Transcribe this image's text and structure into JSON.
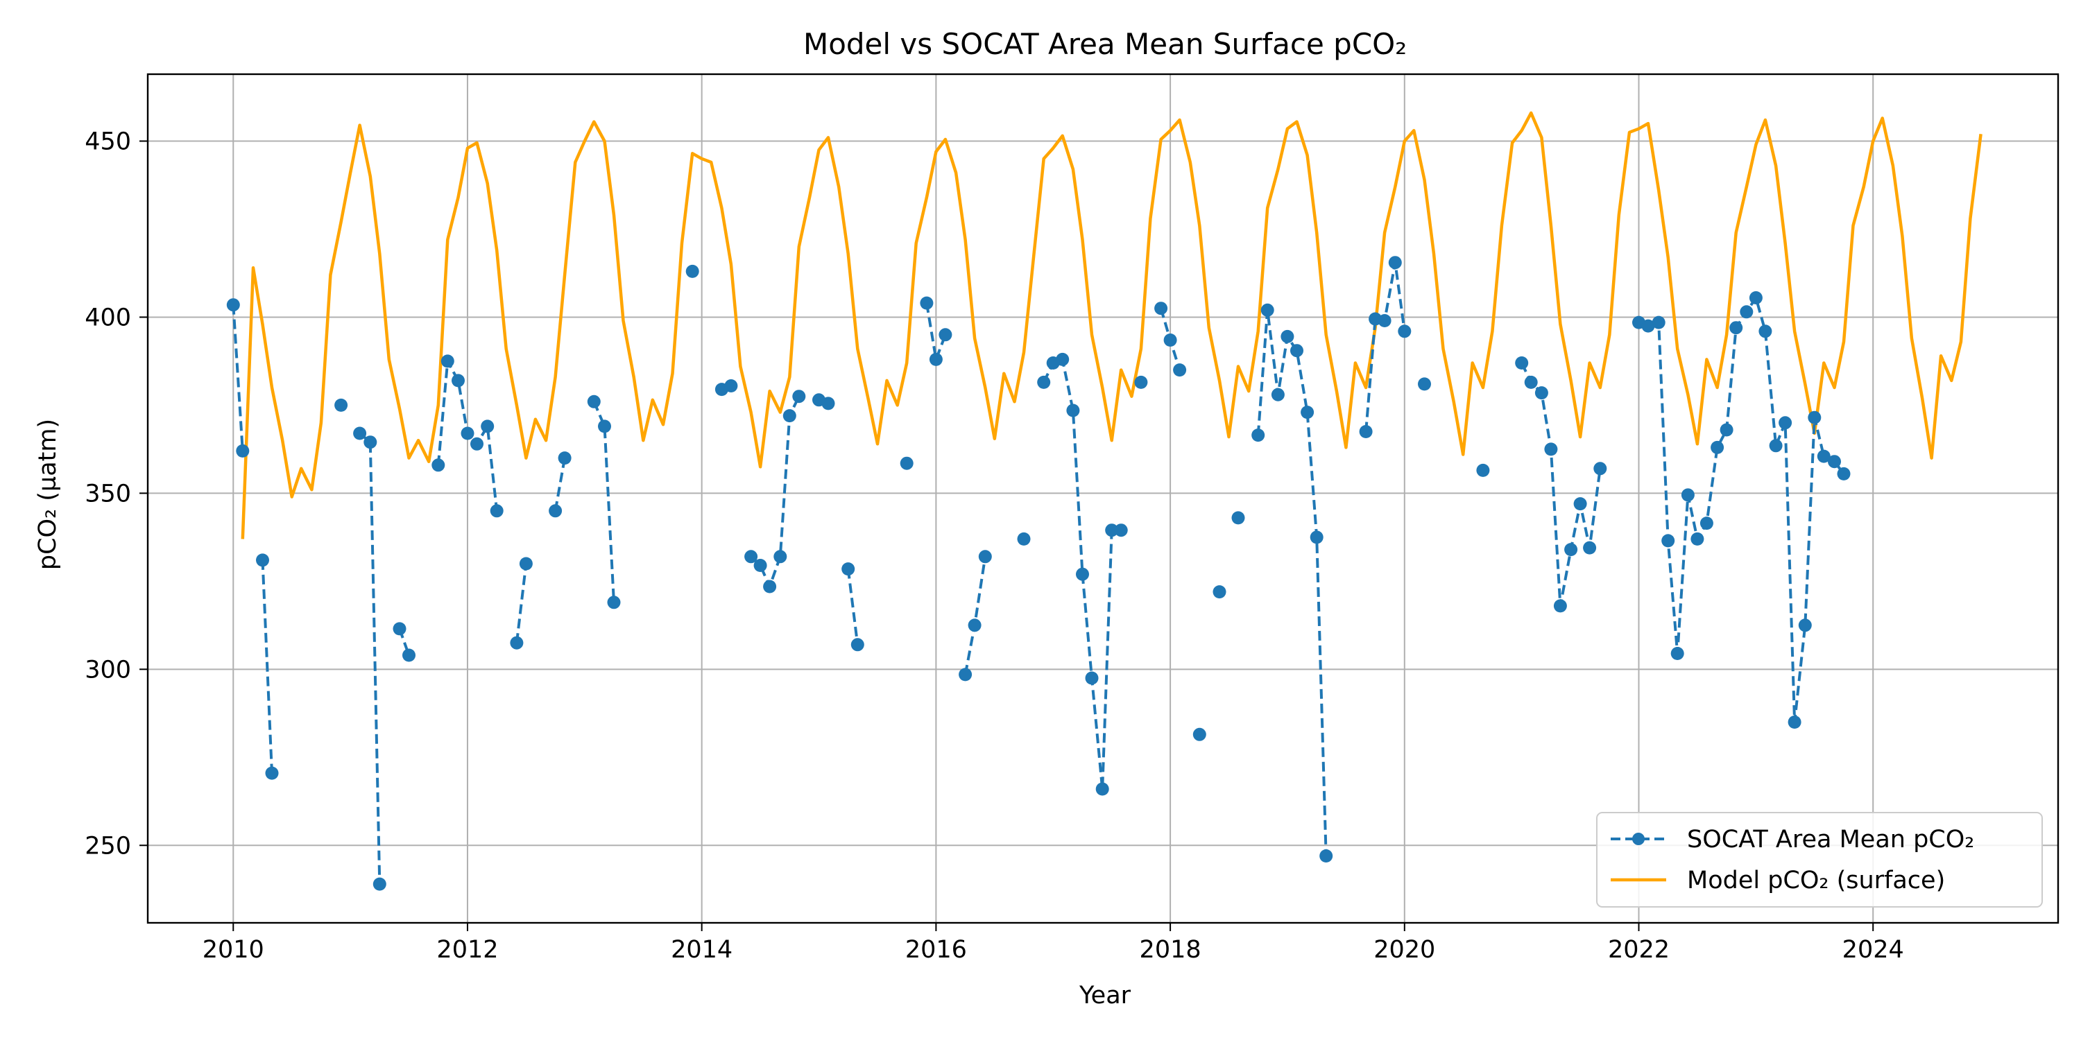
{
  "chart_data": {
    "type": "line",
    "title": "Model vs SOCAT Area Mean Surface pCO₂",
    "xlabel": "Year",
    "ylabel": "pCO₂ (µatm)",
    "xlim": [
      2009.27,
      2025.58
    ],
    "ylim": [
      228,
      469
    ],
    "xticks": [
      2010,
      2012,
      2014,
      2016,
      2018,
      2020,
      2022,
      2024
    ],
    "yticks": [
      250,
      300,
      350,
      400,
      450
    ],
    "grid": true,
    "legend_position": "lower-right",
    "colors": {
      "socat": "#1f77b4",
      "model": "#ffa500",
      "grid": "#b0b0b0"
    },
    "series": [
      {
        "name": "SOCAT Area Mean pCO₂",
        "style": "dashed-markers",
        "points": [
          [
            2010.0,
            403.5
          ],
          [
            2010.08,
            362
          ],
          null,
          [
            2010.25,
            331
          ],
          [
            2010.33,
            270.5
          ],
          null,
          [
            2010.92,
            375
          ],
          null,
          [
            2011.08,
            367
          ],
          [
            2011.17,
            364.5
          ],
          [
            2011.25,
            239
          ],
          null,
          [
            2011.42,
            311.5
          ],
          [
            2011.5,
            304
          ],
          null,
          [
            2011.75,
            358
          ],
          [
            2011.83,
            387.5
          ],
          [
            2011.92,
            382
          ],
          [
            2012.0,
            367
          ],
          [
            2012.08,
            364
          ],
          [
            2012.17,
            369
          ],
          [
            2012.25,
            345
          ],
          null,
          [
            2012.42,
            307.5
          ],
          [
            2012.5,
            330
          ],
          null,
          [
            2012.75,
            345
          ],
          [
            2012.83,
            360
          ],
          null,
          [
            2013.08,
            376
          ],
          [
            2013.17,
            369
          ],
          [
            2013.25,
            319
          ],
          null,
          [
            2013.92,
            413
          ],
          null,
          [
            2014.17,
            379.5
          ],
          [
            2014.25,
            380.5
          ],
          null,
          [
            2014.42,
            332
          ],
          [
            2014.5,
            329.5
          ],
          [
            2014.58,
            323.5
          ],
          [
            2014.67,
            332
          ],
          [
            2014.75,
            372
          ],
          [
            2014.83,
            377.5
          ],
          null,
          [
            2015.0,
            376.5
          ],
          [
            2015.08,
            375.5
          ],
          null,
          [
            2015.25,
            328.5
          ],
          [
            2015.33,
            307
          ],
          null,
          [
            2015.75,
            358.5
          ],
          null,
          [
            2015.92,
            404
          ],
          [
            2016.0,
            388
          ],
          [
            2016.08,
            395
          ],
          null,
          [
            2016.25,
            298.5
          ],
          [
            2016.33,
            312.5
          ],
          [
            2016.42,
            332
          ],
          null,
          [
            2016.75,
            337
          ],
          null,
          [
            2016.92,
            381.5
          ],
          [
            2017.0,
            387
          ],
          [
            2017.08,
            388
          ],
          [
            2017.17,
            373.5
          ],
          [
            2017.25,
            327
          ],
          [
            2017.33,
            297.5
          ],
          [
            2017.42,
            266
          ],
          [
            2017.5,
            339.5
          ],
          [
            2017.58,
            339.5
          ],
          null,
          [
            2017.75,
            381.5
          ],
          null,
          [
            2017.92,
            402.5
          ],
          [
            2018.0,
            393.5
          ],
          [
            2018.08,
            385
          ],
          null,
          [
            2018.25,
            281.5
          ],
          null,
          [
            2018.42,
            322
          ],
          null,
          [
            2018.58,
            343
          ],
          null,
          [
            2018.75,
            366.5
          ],
          [
            2018.83,
            402
          ],
          [
            2018.92,
            378
          ],
          [
            2019.0,
            394.5
          ],
          [
            2019.08,
            390.5
          ],
          [
            2019.17,
            373
          ],
          [
            2019.25,
            337.5
          ],
          [
            2019.33,
            247
          ],
          null,
          [
            2019.67,
            367.5
          ],
          [
            2019.75,
            399.5
          ],
          [
            2019.83,
            399
          ],
          [
            2019.92,
            415.5
          ],
          [
            2020.0,
            396
          ],
          null,
          [
            2020.17,
            381
          ],
          null,
          [
            2020.67,
            356.5
          ],
          null,
          [
            2021.0,
            387
          ],
          [
            2021.08,
            381.5
          ],
          [
            2021.17,
            378.5
          ],
          [
            2021.25,
            362.5
          ],
          [
            2021.33,
            318
          ],
          [
            2021.42,
            334
          ],
          [
            2021.5,
            347
          ],
          [
            2021.58,
            334.5
          ],
          [
            2021.67,
            357
          ],
          null,
          [
            2022.0,
            398.5
          ],
          [
            2022.08,
            397.5
          ],
          [
            2022.17,
            398.5
          ],
          [
            2022.25,
            336.5
          ],
          [
            2022.33,
            304.5
          ],
          [
            2022.42,
            349.5
          ],
          [
            2022.5,
            337
          ],
          [
            2022.58,
            341.5
          ],
          [
            2022.67,
            363
          ],
          [
            2022.75,
            368
          ],
          [
            2022.83,
            397
          ],
          [
            2022.92,
            401.5
          ],
          [
            2023.0,
            405.5
          ],
          [
            2023.08,
            396
          ],
          [
            2023.17,
            363.5
          ],
          [
            2023.25,
            370
          ],
          [
            2023.33,
            285
          ],
          [
            2023.42,
            312.5
          ],
          [
            2023.5,
            371.5
          ],
          [
            2023.58,
            360.5
          ],
          [
            2023.67,
            359
          ],
          [
            2023.75,
            355.5
          ]
        ]
      },
      {
        "name": "Model pCO₂ (surface)",
        "style": "solid",
        "points": [
          [
            2010.08,
            337
          ],
          [
            2010.17,
            414
          ],
          [
            2010.25,
            398
          ],
          [
            2010.33,
            380
          ],
          [
            2010.42,
            365
          ],
          [
            2010.5,
            349
          ],
          [
            2010.58,
            357
          ],
          [
            2010.67,
            351
          ],
          [
            2010.75,
            370
          ],
          [
            2010.83,
            412
          ],
          [
            2010.92,
            427
          ],
          [
            2011.0,
            441
          ],
          [
            2011.08,
            454.5
          ],
          [
            2011.17,
            440
          ],
          [
            2011.25,
            418
          ],
          [
            2011.33,
            388
          ],
          [
            2011.42,
            374
          ],
          [
            2011.5,
            360
          ],
          [
            2011.58,
            365
          ],
          [
            2011.67,
            359
          ],
          [
            2011.75,
            375
          ],
          [
            2011.83,
            422
          ],
          [
            2011.92,
            434
          ],
          [
            2012.0,
            448
          ],
          [
            2012.08,
            449.5
          ],
          [
            2012.17,
            438
          ],
          [
            2012.25,
            419
          ],
          [
            2012.33,
            391
          ],
          [
            2012.42,
            375
          ],
          [
            2012.5,
            360
          ],
          [
            2012.58,
            371
          ],
          [
            2012.67,
            365
          ],
          [
            2012.75,
            383
          ],
          [
            2012.83,
            412
          ],
          [
            2012.92,
            444
          ],
          [
            2013.0,
            450
          ],
          [
            2013.08,
            455.5
          ],
          [
            2013.17,
            450
          ],
          [
            2013.25,
            429
          ],
          [
            2013.33,
            399
          ],
          [
            2013.42,
            383
          ],
          [
            2013.5,
            365
          ],
          [
            2013.58,
            376.5
          ],
          [
            2013.67,
            369.5
          ],
          [
            2013.75,
            384
          ],
          [
            2013.83,
            421
          ],
          [
            2013.92,
            446.5
          ],
          [
            2014.0,
            445
          ],
          [
            2014.08,
            444
          ],
          [
            2014.17,
            431
          ],
          [
            2014.25,
            415
          ],
          [
            2014.33,
            386
          ],
          [
            2014.42,
            373
          ],
          [
            2014.5,
            357.5
          ],
          [
            2014.58,
            379
          ],
          [
            2014.67,
            373
          ],
          [
            2014.75,
            383
          ],
          [
            2014.83,
            420
          ],
          [
            2014.92,
            434
          ],
          [
            2015.0,
            447.5
          ],
          [
            2015.08,
            451
          ],
          [
            2015.17,
            437
          ],
          [
            2015.25,
            418
          ],
          [
            2015.33,
            391
          ],
          [
            2015.42,
            377
          ],
          [
            2015.5,
            364
          ],
          [
            2015.58,
            382
          ],
          [
            2015.67,
            375
          ],
          [
            2015.75,
            387
          ],
          [
            2015.83,
            421
          ],
          [
            2015.92,
            434
          ],
          [
            2016.0,
            447
          ],
          [
            2016.08,
            450.5
          ],
          [
            2016.17,
            441
          ],
          [
            2016.25,
            422
          ],
          [
            2016.33,
            394
          ],
          [
            2016.42,
            380
          ],
          [
            2016.5,
            365.5
          ],
          [
            2016.58,
            384
          ],
          [
            2016.67,
            376
          ],
          [
            2016.75,
            390
          ],
          [
            2016.83,
            416
          ],
          [
            2016.92,
            445
          ],
          [
            2017.0,
            448
          ],
          [
            2017.08,
            451.5
          ],
          [
            2017.17,
            442
          ],
          [
            2017.25,
            422
          ],
          [
            2017.33,
            395
          ],
          [
            2017.42,
            380
          ],
          [
            2017.5,
            365
          ],
          [
            2017.58,
            385
          ],
          [
            2017.67,
            377.5
          ],
          [
            2017.75,
            391
          ],
          [
            2017.83,
            428
          ],
          [
            2017.92,
            450.5
          ],
          [
            2018.0,
            453
          ],
          [
            2018.08,
            456
          ],
          [
            2018.17,
            444
          ],
          [
            2018.25,
            426
          ],
          [
            2018.33,
            397
          ],
          [
            2018.42,
            382
          ],
          [
            2018.5,
            366
          ],
          [
            2018.58,
            386
          ],
          [
            2018.67,
            379
          ],
          [
            2018.75,
            396
          ],
          [
            2018.83,
            431
          ],
          [
            2018.92,
            442
          ],
          [
            2019.0,
            453.5
          ],
          [
            2019.08,
            455.5
          ],
          [
            2019.17,
            446
          ],
          [
            2019.25,
            424
          ],
          [
            2019.33,
            395
          ],
          [
            2019.42,
            379
          ],
          [
            2019.5,
            363
          ],
          [
            2019.58,
            387
          ],
          [
            2019.67,
            380
          ],
          [
            2019.75,
            397
          ],
          [
            2019.83,
            424
          ],
          [
            2019.92,
            437
          ],
          [
            2020.0,
            450
          ],
          [
            2020.08,
            453
          ],
          [
            2020.17,
            439
          ],
          [
            2020.25,
            418
          ],
          [
            2020.33,
            391
          ],
          [
            2020.42,
            376
          ],
          [
            2020.5,
            361
          ],
          [
            2020.58,
            387
          ],
          [
            2020.67,
            380
          ],
          [
            2020.75,
            396
          ],
          [
            2020.83,
            426
          ],
          [
            2020.92,
            449.5
          ],
          [
            2021.0,
            453
          ],
          [
            2021.08,
            458
          ],
          [
            2021.17,
            451
          ],
          [
            2021.25,
            426
          ],
          [
            2021.33,
            398
          ],
          [
            2021.42,
            382
          ],
          [
            2021.5,
            366
          ],
          [
            2021.58,
            387
          ],
          [
            2021.67,
            380
          ],
          [
            2021.75,
            395
          ],
          [
            2021.83,
            429
          ],
          [
            2021.92,
            452.5
          ],
          [
            2022.0,
            453.5
          ],
          [
            2022.08,
            455
          ],
          [
            2022.17,
            436
          ],
          [
            2022.25,
            417
          ],
          [
            2022.33,
            391
          ],
          [
            2022.42,
            378
          ],
          [
            2022.5,
            364
          ],
          [
            2022.58,
            388
          ],
          [
            2022.67,
            380
          ],
          [
            2022.75,
            395
          ],
          [
            2022.83,
            424
          ],
          [
            2022.92,
            437
          ],
          [
            2023.0,
            449
          ],
          [
            2023.08,
            456
          ],
          [
            2023.17,
            443
          ],
          [
            2023.25,
            421
          ],
          [
            2023.33,
            396
          ],
          [
            2023.42,
            381
          ],
          [
            2023.5,
            367
          ],
          [
            2023.58,
            387
          ],
          [
            2023.67,
            380
          ],
          [
            2023.75,
            393
          ],
          [
            2023.83,
            426
          ],
          [
            2023.92,
            437
          ],
          [
            2024.0,
            450
          ],
          [
            2024.08,
            456.5
          ],
          [
            2024.17,
            443
          ],
          [
            2024.25,
            423
          ],
          [
            2024.33,
            394
          ],
          [
            2024.42,
            377
          ],
          [
            2024.5,
            360
          ],
          [
            2024.58,
            389
          ],
          [
            2024.67,
            382
          ],
          [
            2024.75,
            393
          ],
          [
            2024.83,
            428
          ],
          [
            2024.92,
            452
          ]
        ]
      }
    ]
  }
}
